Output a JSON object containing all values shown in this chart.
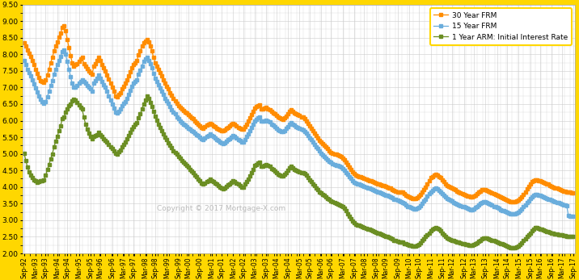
{
  "ylim": [
    2.0,
    9.5
  ],
  "yticks": [
    2.0,
    2.5,
    3.0,
    3.5,
    4.0,
    4.5,
    5.0,
    5.5,
    6.0,
    6.5,
    7.0,
    7.5,
    8.0,
    8.5,
    9.0,
    9.5
  ],
  "color_30yr": "#FF8C00",
  "color_15yr": "#6AADDC",
  "color_arm": "#6B8E23",
  "bg_color": "#FFFFFF",
  "outer_border_color": "#FFD700",
  "grid_color": "#CCCCCC",
  "legend_labels": [
    "30 Year FRM",
    "15 Year FRM",
    "1 Year ARM: Initial Interest Rate"
  ],
  "copyright_text": "Copyright © 2017 Mortgage-X.com",
  "xtick_labels": [
    "Sep-92",
    "Mar-93",
    "Sep-93",
    "Mar-94",
    "Sep-94",
    "Mar-95",
    "Sep-95",
    "Mar-96",
    "Sep-96",
    "Mar-97",
    "Sep-97",
    "Mar-98",
    "Sep-98",
    "Mar-99",
    "Sep-99",
    "Mar-00",
    "Sep-00",
    "Mar-01",
    "Sep-01",
    "Mar-02",
    "Sep-02",
    "Mar-03",
    "Sep-03",
    "Mar-04",
    "Sep-04",
    "Mar-05",
    "Sep-05",
    "Mar-06",
    "Sep-06",
    "Mar-07",
    "Sep-07",
    "Mar-08",
    "Sep-08",
    "Mar-09",
    "Sep-09",
    "Mar-10",
    "Sep-10",
    "Mar-11",
    "Sep-11",
    "Mar-12",
    "Sep-12",
    "Mar-13",
    "Sep-13",
    "Mar-14",
    "Sep-14",
    "Mar-15",
    "Sep-15",
    "Mar-16",
    "Sep-16",
    "Mar-17",
    "Sep-17"
  ],
  "frm30": [
    8.35,
    8.24,
    8.12,
    8.02,
    7.94,
    7.8,
    7.68,
    7.55,
    7.42,
    7.3,
    7.2,
    7.18,
    7.15,
    7.22,
    7.38,
    7.55,
    7.75,
    7.9,
    8.1,
    8.25,
    8.36,
    8.52,
    8.64,
    8.8,
    8.85,
    8.7,
    8.45,
    8.2,
    7.96,
    7.75,
    7.65,
    7.68,
    7.72,
    7.78,
    7.85,
    7.9,
    7.72,
    7.65,
    7.58,
    7.5,
    7.45,
    7.4,
    7.65,
    7.72,
    7.8,
    7.9,
    7.8,
    7.7,
    7.6,
    7.5,
    7.38,
    7.25,
    7.12,
    7.0,
    6.88,
    6.75,
    6.72,
    6.78,
    6.85,
    6.95,
    7.04,
    7.12,
    7.22,
    7.35,
    7.48,
    7.6,
    7.68,
    7.74,
    7.82,
    7.98,
    8.1,
    8.25,
    8.35,
    8.4,
    8.45,
    8.38,
    8.25,
    8.1,
    7.9,
    7.75,
    7.65,
    7.55,
    7.45,
    7.35,
    7.22,
    7.12,
    7.04,
    6.95,
    6.85,
    6.76,
    6.68,
    6.6,
    6.52,
    6.46,
    6.4,
    6.35,
    6.3,
    6.26,
    6.22,
    6.18,
    6.14,
    6.09,
    6.05,
    6.0,
    5.95,
    5.9,
    5.85,
    5.8,
    5.78,
    5.82,
    5.86,
    5.9,
    5.92,
    5.88,
    5.85,
    5.82,
    5.78,
    5.75,
    5.72,
    5.7,
    5.7,
    5.73,
    5.76,
    5.8,
    5.84,
    5.88,
    5.92,
    5.9,
    5.85,
    5.8,
    5.77,
    5.74,
    5.74,
    5.82,
    5.9,
    5.98,
    6.08,
    6.18,
    6.28,
    6.38,
    6.42,
    6.46,
    6.48,
    6.36,
    6.36,
    6.38,
    6.4,
    6.36,
    6.34,
    6.28,
    6.24,
    6.2,
    6.16,
    6.1,
    6.08,
    6.05,
    6.04,
    6.08,
    6.14,
    6.2,
    6.28,
    6.32,
    6.28,
    6.24,
    6.2,
    6.18,
    6.15,
    6.12,
    6.1,
    6.05,
    6.0,
    5.92,
    5.85,
    5.78,
    5.7,
    5.62,
    5.55,
    5.47,
    5.4,
    5.35,
    5.3,
    5.25,
    5.2,
    5.15,
    5.09,
    5.05,
    5.02,
    5.0,
    4.98,
    4.96,
    4.94,
    4.92,
    4.88,
    4.82,
    4.75,
    4.68,
    4.6,
    4.53,
    4.46,
    4.4,
    4.36,
    4.34,
    4.32,
    4.3,
    4.28,
    4.26,
    4.24,
    4.22,
    4.2,
    4.18,
    4.16,
    4.14,
    4.12,
    4.1,
    4.08,
    4.06,
    4.05,
    4.04,
    4.02,
    4.0,
    3.98,
    3.96,
    3.93,
    3.9,
    3.88,
    3.86,
    3.85,
    3.84,
    3.84,
    3.8,
    3.76,
    3.72,
    3.7,
    3.68,
    3.66,
    3.65,
    3.65,
    3.68,
    3.72,
    3.78,
    3.85,
    3.92,
    4.0,
    4.1,
    4.2,
    4.28,
    4.32,
    4.36,
    4.38,
    4.36,
    4.32,
    4.28,
    4.22,
    4.16,
    4.1,
    4.05,
    4.02,
    4.0,
    3.97,
    3.94,
    3.91,
    3.88,
    3.85,
    3.82,
    3.8,
    3.77,
    3.75,
    3.73,
    3.72,
    3.7,
    3.7,
    3.72,
    3.76,
    3.8,
    3.84,
    3.88,
    3.91,
    3.92,
    3.92,
    3.9,
    3.88,
    3.85,
    3.82,
    3.8,
    3.78,
    3.75,
    3.72,
    3.7,
    3.68,
    3.65,
    3.62,
    3.6,
    3.58,
    3.56,
    3.55,
    3.55,
    3.56,
    3.58,
    3.6,
    3.65,
    3.7,
    3.78,
    3.86,
    3.94,
    4.02,
    4.1,
    4.16,
    4.2,
    4.22,
    4.22,
    4.2,
    4.18,
    4.16,
    4.14,
    4.12,
    4.1,
    4.08,
    4.05,
    4.02,
    4.0,
    3.98,
    3.96,
    3.94,
    3.92,
    3.9,
    3.88,
    3.87,
    3.86,
    3.85,
    3.84,
    3.83,
    3.83
  ],
  "frm15": [
    7.8,
    7.68,
    7.55,
    7.44,
    7.34,
    7.22,
    7.1,
    6.98,
    6.86,
    6.74,
    6.64,
    6.58,
    6.52,
    6.58,
    6.72,
    6.88,
    7.05,
    7.2,
    7.4,
    7.55,
    7.68,
    7.82,
    7.94,
    8.08,
    8.14,
    8.0,
    7.78,
    7.55,
    7.32,
    7.12,
    7.0,
    7.02,
    7.06,
    7.12,
    7.18,
    7.22,
    7.18,
    7.12,
    7.06,
    7.0,
    6.95,
    6.9,
    7.12,
    7.2,
    7.28,
    7.38,
    7.28,
    7.18,
    7.08,
    7.0,
    6.88,
    6.75,
    6.62,
    6.5,
    6.38,
    6.25,
    6.22,
    6.28,
    6.35,
    6.44,
    6.52,
    6.58,
    6.68,
    6.8,
    6.92,
    7.04,
    7.12,
    7.18,
    7.24,
    7.4,
    7.52,
    7.65,
    7.78,
    7.85,
    7.9,
    7.82,
    7.72,
    7.6,
    7.42,
    7.28,
    7.18,
    7.08,
    6.98,
    6.9,
    6.78,
    6.68,
    6.6,
    6.52,
    6.42,
    6.34,
    6.26,
    6.2,
    6.12,
    6.06,
    6.0,
    5.95,
    5.9,
    5.86,
    5.82,
    5.78,
    5.74,
    5.7,
    5.66,
    5.62,
    5.58,
    5.54,
    5.5,
    5.46,
    5.44,
    5.48,
    5.52,
    5.56,
    5.6,
    5.56,
    5.52,
    5.48,
    5.44,
    5.4,
    5.36,
    5.32,
    5.3,
    5.34,
    5.38,
    5.42,
    5.46,
    5.5,
    5.54,
    5.52,
    5.48,
    5.44,
    5.4,
    5.36,
    5.36,
    5.44,
    5.52,
    5.6,
    5.7,
    5.8,
    5.9,
    6.0,
    6.04,
    6.08,
    6.1,
    5.98,
    5.98,
    6.0,
    6.02,
    5.98,
    5.96,
    5.9,
    5.86,
    5.82,
    5.78,
    5.72,
    5.7,
    5.68,
    5.66,
    5.7,
    5.76,
    5.82,
    5.9,
    5.94,
    5.9,
    5.86,
    5.82,
    5.8,
    5.77,
    5.74,
    5.72,
    5.67,
    5.62,
    5.54,
    5.48,
    5.42,
    5.35,
    5.28,
    5.22,
    5.15,
    5.08,
    5.02,
    4.96,
    4.92,
    4.87,
    4.82,
    4.78,
    4.74,
    4.7,
    4.68,
    4.66,
    4.64,
    4.62,
    4.6,
    4.56,
    4.5,
    4.44,
    4.38,
    4.32,
    4.26,
    4.2,
    4.15,
    4.12,
    4.1,
    4.08,
    4.06,
    4.04,
    4.02,
    4.0,
    3.98,
    3.96,
    3.94,
    3.92,
    3.9,
    3.88,
    3.86,
    3.84,
    3.82,
    3.8,
    3.78,
    3.76,
    3.74,
    3.72,
    3.7,
    3.67,
    3.64,
    3.62,
    3.6,
    3.58,
    3.56,
    3.54,
    3.5,
    3.46,
    3.42,
    3.4,
    3.38,
    3.36,
    3.34,
    3.33,
    3.35,
    3.38,
    3.44,
    3.5,
    3.57,
    3.64,
    3.72,
    3.8,
    3.86,
    3.9,
    3.94,
    3.96,
    3.94,
    3.9,
    3.86,
    3.8,
    3.75,
    3.7,
    3.65,
    3.62,
    3.6,
    3.57,
    3.54,
    3.51,
    3.48,
    3.46,
    3.44,
    3.42,
    3.4,
    3.38,
    3.36,
    3.34,
    3.32,
    3.32,
    3.34,
    3.38,
    3.42,
    3.46,
    3.5,
    3.54,
    3.55,
    3.55,
    3.53,
    3.5,
    3.48,
    3.45,
    3.42,
    3.4,
    3.38,
    3.35,
    3.32,
    3.3,
    3.28,
    3.26,
    3.24,
    3.22,
    3.2,
    3.18,
    3.18,
    3.2,
    3.22,
    3.24,
    3.28,
    3.34,
    3.4,
    3.46,
    3.52,
    3.58,
    3.65,
    3.7,
    3.75,
    3.78,
    3.78,
    3.76,
    3.74,
    3.72,
    3.7,
    3.68,
    3.66,
    3.64,
    3.62,
    3.6,
    3.58,
    3.56,
    3.54,
    3.52,
    3.5,
    3.48,
    3.46,
    3.45,
    3.44,
    3.14,
    3.13,
    3.13,
    3.13
  ],
  "arm1": [
    5.02,
    4.8,
    4.6,
    4.45,
    4.35,
    4.28,
    4.22,
    4.18,
    4.15,
    4.16,
    4.18,
    4.2,
    4.22,
    4.35,
    4.52,
    4.68,
    4.85,
    5.0,
    5.2,
    5.38,
    5.52,
    5.7,
    5.85,
    6.05,
    6.1,
    6.25,
    6.35,
    6.45,
    6.5,
    6.6,
    6.65,
    6.62,
    6.55,
    6.48,
    6.4,
    6.35,
    6.1,
    5.9,
    5.75,
    5.62,
    5.52,
    5.45,
    5.52,
    5.55,
    5.58,
    5.65,
    5.58,
    5.52,
    5.46,
    5.4,
    5.35,
    5.28,
    5.22,
    5.15,
    5.08,
    5.02,
    5.0,
    5.06,
    5.12,
    5.2,
    5.28,
    5.35,
    5.45,
    5.55,
    5.65,
    5.75,
    5.82,
    5.88,
    5.95,
    6.08,
    6.2,
    6.35,
    6.5,
    6.62,
    6.74,
    6.68,
    6.55,
    6.42,
    6.28,
    6.14,
    6.02,
    5.9,
    5.8,
    5.7,
    5.6,
    5.5,
    5.42,
    5.34,
    5.25,
    5.18,
    5.1,
    5.04,
    4.98,
    4.92,
    4.86,
    4.8,
    4.75,
    4.7,
    4.65,
    4.6,
    4.54,
    4.48,
    4.42,
    4.36,
    4.3,
    4.24,
    4.18,
    4.12,
    4.08,
    4.12,
    4.16,
    4.2,
    4.24,
    4.2,
    4.16,
    4.12,
    4.08,
    4.04,
    4.0,
    3.96,
    3.94,
    3.98,
    4.02,
    4.06,
    4.1,
    4.14,
    4.18,
    4.16,
    4.12,
    4.08,
    4.04,
    4.0,
    4.0,
    4.08,
    4.16,
    4.24,
    4.34,
    4.44,
    4.54,
    4.64,
    4.68,
    4.72,
    4.74,
    4.62,
    4.62,
    4.65,
    4.68,
    4.65,
    4.62,
    4.56,
    4.52,
    4.48,
    4.44,
    4.38,
    4.36,
    4.34,
    4.34,
    4.38,
    4.44,
    4.5,
    4.58,
    4.62,
    4.58,
    4.54,
    4.5,
    4.48,
    4.46,
    4.44,
    4.44,
    4.4,
    4.35,
    4.28,
    4.22,
    4.16,
    4.1,
    4.04,
    3.98,
    3.92,
    3.86,
    3.82,
    3.78,
    3.74,
    3.7,
    3.66,
    3.62,
    3.58,
    3.55,
    3.52,
    3.5,
    3.48,
    3.46,
    3.44,
    3.4,
    3.35,
    3.28,
    3.2,
    3.12,
    3.05,
    2.98,
    2.92,
    2.88,
    2.86,
    2.84,
    2.82,
    2.8,
    2.78,
    2.76,
    2.74,
    2.72,
    2.7,
    2.68,
    2.66,
    2.64,
    2.62,
    2.6,
    2.58,
    2.56,
    2.54,
    2.52,
    2.5,
    2.48,
    2.46,
    2.43,
    2.4,
    2.38,
    2.36,
    2.35,
    2.34,
    2.34,
    2.3,
    2.28,
    2.26,
    2.25,
    2.24,
    2.23,
    2.22,
    2.22,
    2.24,
    2.27,
    2.32,
    2.38,
    2.44,
    2.5,
    2.56,
    2.62,
    2.68,
    2.72,
    2.76,
    2.78,
    2.76,
    2.72,
    2.68,
    2.62,
    2.56,
    2.5,
    2.46,
    2.44,
    2.42,
    2.4,
    2.38,
    2.36,
    2.34,
    2.33,
    2.32,
    2.3,
    2.28,
    2.27,
    2.26,
    2.25,
    2.24,
    2.24,
    2.26,
    2.28,
    2.32,
    2.36,
    2.4,
    2.44,
    2.46,
    2.46,
    2.45,
    2.44,
    2.42,
    2.4,
    2.38,
    2.36,
    2.34,
    2.32,
    2.3,
    2.28,
    2.26,
    2.24,
    2.22,
    2.2,
    2.18,
    2.16,
    2.16,
    2.18,
    2.2,
    2.22,
    2.26,
    2.32,
    2.38,
    2.44,
    2.5,
    2.56,
    2.62,
    2.68,
    2.74,
    2.78,
    2.78,
    2.76,
    2.74,
    2.72,
    2.7,
    2.68,
    2.66,
    2.65,
    2.63,
    2.62,
    2.6,
    2.59,
    2.58,
    2.57,
    2.56,
    2.55,
    2.54,
    2.53,
    2.52,
    2.52,
    2.52,
    2.52,
    2.52
  ]
}
